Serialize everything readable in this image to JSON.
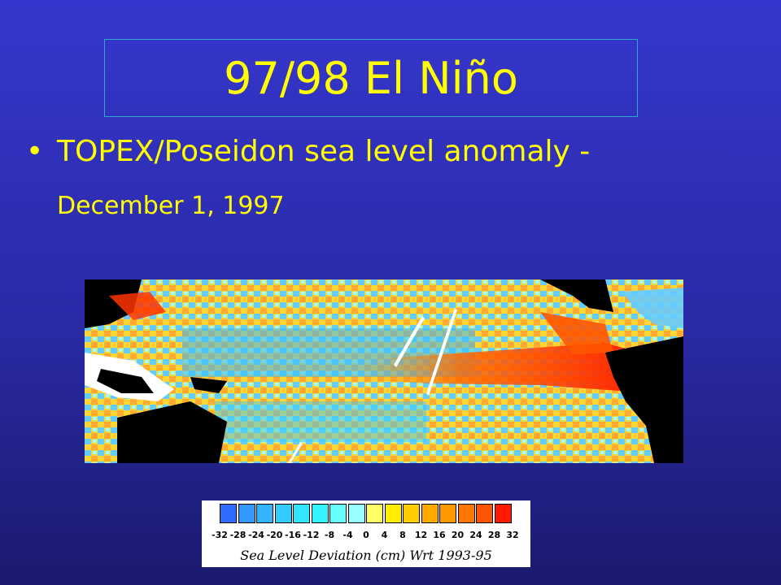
{
  "slide": {
    "title": "97/98 El Niño",
    "bullet_symbol": "•",
    "bullet_text": "TOPEX/Poseidon sea level anomaly -",
    "bullet_subtext": "December 1, 1997"
  },
  "legend": {
    "caption": "Sea Level Deviation (cm)  Wrt 1993-95",
    "tick_labels": [
      "-32",
      "-28",
      "-24",
      "-20",
      "-16",
      "-12",
      "-8",
      "-4",
      "0",
      "4",
      "8",
      "12",
      "16",
      "20",
      "24",
      "28",
      "32"
    ],
    "swatch_colors": [
      "#2f6cff",
      "#3399ff",
      "#33b4ff",
      "#33ccff",
      "#33e5ff",
      "#33f5ff",
      "#66ffff",
      "#99ffff",
      "#ffff66",
      "#ffee00",
      "#ffcc00",
      "#ffaa00",
      "#ff9900",
      "#ff7700",
      "#ff5500",
      "#ff1a00"
    ]
  },
  "map": {
    "description_colors": {
      "land": "#000000",
      "ice_or_missing": "#ffffff",
      "warm_anomaly": "#ff2a00",
      "cool_anomaly": "#33ccff"
    }
  }
}
